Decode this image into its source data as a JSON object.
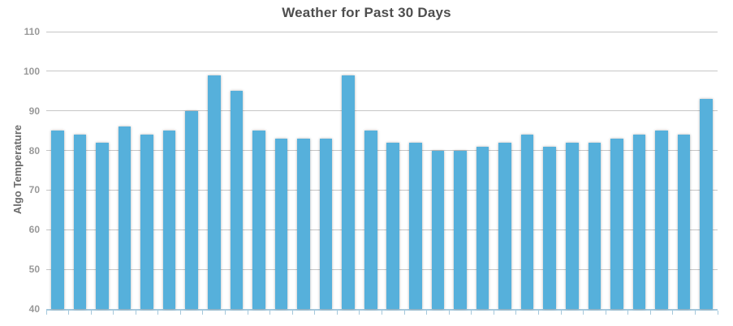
{
  "chart_data": {
    "type": "bar",
    "title": "Weather for Past 30 Days",
    "xlabel": "",
    "ylabel": "Algo Temperature",
    "values": [
      85,
      84,
      82,
      86,
      84,
      85,
      90,
      99,
      95,
      85,
      83,
      83,
      83,
      99,
      85,
      82,
      82,
      80,
      80,
      81,
      82,
      84,
      81,
      82,
      82,
      83,
      84,
      85,
      84,
      93
    ],
    "ylim": [
      40,
      110
    ],
    "ytick_interval": 10,
    "ytick_labels": [
      "40",
      "50",
      "60",
      "70",
      "80",
      "90",
      "100",
      "110"
    ],
    "x_tick_labels": [],
    "grid": true,
    "legend": "none",
    "colors": {
      "bar": "#56b0db",
      "grid": "#c6c6c6",
      "axis": "#a5c8dc",
      "tick_label": "#999999",
      "axis_title": "#6b6b6b",
      "title": "#4e4e4e",
      "background": "#ffffff"
    }
  }
}
